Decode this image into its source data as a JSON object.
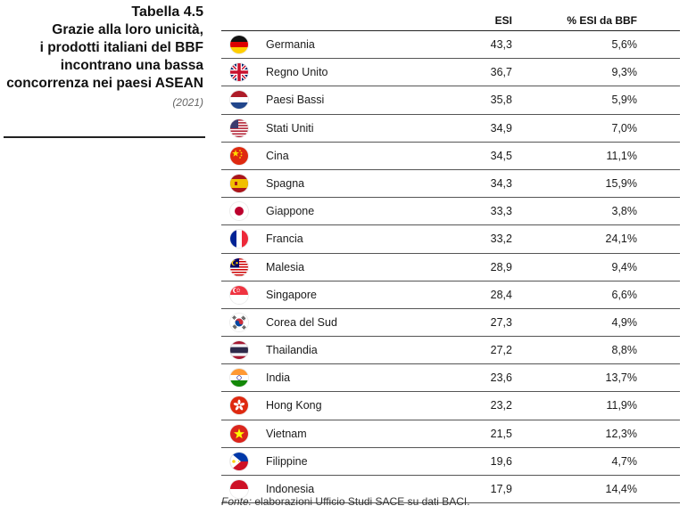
{
  "title": {
    "number": "Tabella 4.5",
    "lines": [
      "Grazie alla loro unicità,",
      "i prodotti italiani del BBF",
      "incontrano una bassa",
      "concorrenza nei paesi ASEAN"
    ],
    "year": "(2021)"
  },
  "table": {
    "headers": {
      "esi": "ESI",
      "pct": "% ESI da BBF"
    },
    "rows": [
      {
        "flag": "germany-flag-icon",
        "country": "Germania",
        "esi": "43,3",
        "pct": "5,6%"
      },
      {
        "flag": "uk-flag-icon",
        "country": "Regno Unito",
        "esi": "36,7",
        "pct": "9,3%"
      },
      {
        "flag": "netherlands-flag-icon",
        "country": "Paesi Bassi",
        "esi": "35,8",
        "pct": "5,9%"
      },
      {
        "flag": "usa-flag-icon",
        "country": "Stati Uniti",
        "esi": "34,9",
        "pct": "7,0%"
      },
      {
        "flag": "china-flag-icon",
        "country": "Cina",
        "esi": "34,5",
        "pct": "11,1%"
      },
      {
        "flag": "spain-flag-icon",
        "country": "Spagna",
        "esi": "34,3",
        "pct": "15,9%"
      },
      {
        "flag": "japan-flag-icon",
        "country": "Giappone",
        "esi": "33,3",
        "pct": "3,8%"
      },
      {
        "flag": "france-flag-icon",
        "country": "Francia",
        "esi": "33,2",
        "pct": "24,1%"
      },
      {
        "flag": "malaysia-flag-icon",
        "country": "Malesia",
        "esi": "28,9",
        "pct": "9,4%"
      },
      {
        "flag": "singapore-flag-icon",
        "country": "Singapore",
        "esi": "28,4",
        "pct": "6,6%"
      },
      {
        "flag": "south-korea-flag-icon",
        "country": "Corea del Sud",
        "esi": "27,3",
        "pct": "4,9%"
      },
      {
        "flag": "thailand-flag-icon",
        "country": "Thailandia",
        "esi": "27,2",
        "pct": "8,8%"
      },
      {
        "flag": "india-flag-icon",
        "country": "India",
        "esi": "23,6",
        "pct": "13,7%"
      },
      {
        "flag": "hong-kong-flag-icon",
        "country": "Hong Kong",
        "esi": "23,2",
        "pct": "11,9%"
      },
      {
        "flag": "vietnam-flag-icon",
        "country": "Vietnam",
        "esi": "21,5",
        "pct": "12,3%"
      },
      {
        "flag": "philippines-flag-icon",
        "country": "Filippine",
        "esi": "19,6",
        "pct": "4,7%"
      },
      {
        "flag": "indonesia-flag-icon",
        "country": "Indonesia",
        "esi": "17,9",
        "pct": "14,4%"
      }
    ]
  },
  "source": {
    "label": "Fonte:",
    "text": " elaborazioni Ufficio Studi SACE su dati BACI."
  }
}
